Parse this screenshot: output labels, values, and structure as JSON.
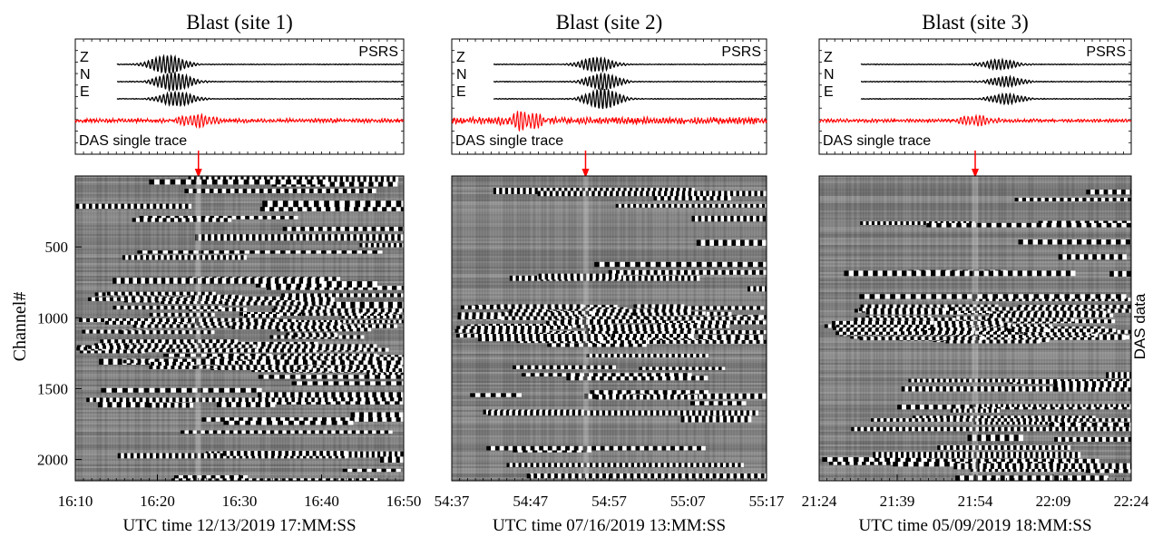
{
  "figure": {
    "ylabel": "Channel#",
    "right_label": "DAS data",
    "station_label": "PSRS",
    "das_trace_label": "DAS single trace",
    "component_labels": [
      "Z",
      "N",
      "E"
    ],
    "colors": {
      "seismo": "#000000",
      "das_trace": "#ff0000",
      "arrow": "#ff0000"
    }
  },
  "chart_data": [
    {
      "type": "line",
      "title": "Blast (site 1)",
      "xlabel": "UTC time 12/13/2019 17:MM:SS",
      "x_ticks": [
        "16:10",
        "16:20",
        "16:30",
        "16:40",
        "16:50"
      ],
      "y_ticks": [
        "500",
        "1000",
        "1500",
        "2000"
      ],
      "channel_range": [
        0,
        2150
      ],
      "event_time": "16:25",
      "series": [
        {
          "name": "Z",
          "burst_center_frac": 0.28,
          "burst_amp": 0.9,
          "noise_amp": 0.04
        },
        {
          "name": "N",
          "burst_center_frac": 0.3,
          "burst_amp": 0.9,
          "noise_amp": 0.04
        },
        {
          "name": "E",
          "burst_center_frac": 0.31,
          "burst_amp": 0.7,
          "noise_amp": 0.04
        },
        {
          "name": "DAS single trace",
          "burst_center_frac": 0.37,
          "burst_amp": 0.6,
          "noise_amp": 0.25
        }
      ]
    },
    {
      "type": "line",
      "title": "Blast (site 2)",
      "xlabel": "UTC time 07/16/2019 13:MM:SS",
      "x_ticks": [
        "54:37",
        "54:47",
        "54:57",
        "55:07",
        "55:17"
      ],
      "y_ticks": [],
      "channel_range": [
        0,
        2150
      ],
      "event_time": "54:54",
      "series": [
        {
          "name": "Z",
          "burst_center_frac": 0.46,
          "burst_amp": 0.7,
          "noise_amp": 0.04
        },
        {
          "name": "N",
          "burst_center_frac": 0.48,
          "burst_amp": 0.8,
          "noise_amp": 0.04
        },
        {
          "name": "E",
          "burst_center_frac": 0.48,
          "burst_amp": 1.0,
          "noise_amp": 0.04
        },
        {
          "name": "DAS single trace",
          "burst_center_frac": 0.23,
          "burst_amp": 0.9,
          "noise_amp": 0.4
        }
      ]
    },
    {
      "type": "line",
      "title": "Blast (site 3)",
      "xlabel": "UTC time 05/09/2019 18:MM:SS",
      "x_ticks": [
        "21:24",
        "21:39",
        "21:54",
        "22:09",
        "22:24"
      ],
      "y_ticks": [],
      "channel_range": [
        0,
        2150
      ],
      "event_time": "21:54",
      "series": [
        {
          "name": "Z",
          "burst_center_frac": 0.58,
          "burst_amp": 0.5,
          "noise_amp": 0.04
        },
        {
          "name": "N",
          "burst_center_frac": 0.6,
          "burst_amp": 0.5,
          "noise_amp": 0.04
        },
        {
          "name": "E",
          "burst_center_frac": 0.6,
          "burst_amp": 0.5,
          "noise_amp": 0.04
        },
        {
          "name": "DAS single trace",
          "burst_center_frac": 0.5,
          "burst_amp": 0.5,
          "noise_amp": 0.2
        }
      ]
    }
  ]
}
